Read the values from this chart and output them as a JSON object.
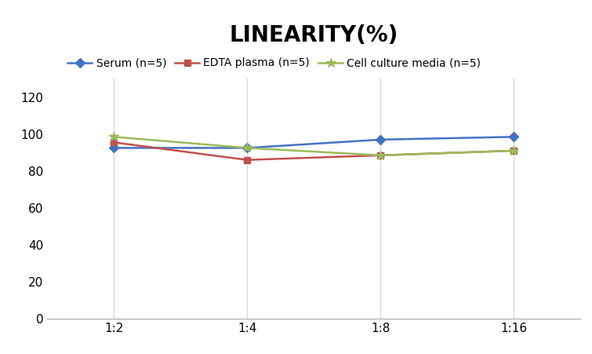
{
  "title": "LINEARITY(%)",
  "title_fontsize": 20,
  "title_fontweight": "bold",
  "x_labels": [
    "1:2",
    "1:4",
    "1:8",
    "1:16"
  ],
  "x_positions": [
    0,
    1,
    2,
    3
  ],
  "series": [
    {
      "label": "Serum (n=5)",
      "values": [
        92.5,
        92.5,
        97.0,
        98.5
      ],
      "color": "#4472C4",
      "marker": "D",
      "markersize": 6,
      "linewidth": 1.8
    },
    {
      "label": "EDTA plasma (n=5)",
      "values": [
        95.5,
        86.0,
        88.5,
        91.0
      ],
      "color": "#C0504D",
      "marker": "s",
      "markersize": 6,
      "linewidth": 1.8
    },
    {
      "label": "Cell culture media (n=5)",
      "values": [
        98.5,
        92.5,
        88.5,
        91.0
      ],
      "color": "#9BBB59",
      "marker": "*",
      "markersize": 9,
      "linewidth": 1.8
    }
  ],
  "ylim": [
    0,
    130
  ],
  "yticks": [
    0,
    20,
    40,
    60,
    80,
    100,
    120
  ],
  "grid_color": "#D9D9D9",
  "background_color": "#FFFFFF",
  "legend_fontsize": 10,
  "axis_fontsize": 11
}
